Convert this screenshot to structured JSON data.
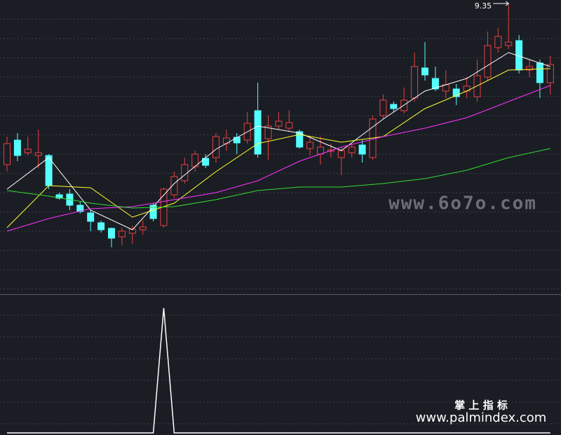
{
  "chart_data": [
    {
      "type": "candlestick",
      "ylim": [
        7.275,
        9.375
      ],
      "up_color": "#e8403f",
      "down_color": "#55ffff",
      "open": [
        8.2,
        8.375,
        8.285,
        8.265,
        8.265,
        7.985,
        7.99,
        7.91,
        7.855,
        7.785,
        7.745,
        7.685,
        7.71,
        7.735,
        7.91,
        7.765,
        7.985,
        8.085,
        8.185,
        8.245,
        8.25,
        8.35,
        8.395,
        8.375,
        8.585,
        8.385,
        8.475,
        8.46,
        8.435,
        8.315,
        8.275,
        8.295,
        8.25,
        8.285,
        8.34,
        8.25,
        8.55,
        8.63,
        8.585,
        8.675,
        8.89,
        8.815,
        8.725,
        8.74,
        8.725,
        8.685,
        8.825,
        9.035,
        9.05,
        9.085,
        8.875,
        8.925,
        8.785
      ],
      "high": [
        8.4,
        8.425,
        8.4,
        8.45,
        8.275,
        8,
        8.025,
        7.935,
        7.875,
        7.8,
        7.75,
        7.75,
        7.765,
        7.8,
        7.925,
        8.035,
        8.15,
        8.25,
        8.3,
        8.275,
        8.425,
        8.45,
        8.425,
        8.575,
        8.785,
        8.55,
        8.575,
        8.59,
        8.45,
        8.4,
        8.4,
        8.35,
        8.325,
        8.35,
        8.375,
        8.55,
        8.7,
        8.65,
        8.75,
        9,
        9.075,
        8.9,
        8.875,
        8.775,
        8.825,
        8.95,
        9.15,
        9.175,
        9.35,
        9.125,
        8.95,
        8.95,
        8.975
      ],
      "low": [
        8.15,
        8.225,
        8.265,
        8.175,
        8.025,
        7.95,
        7.875,
        7.85,
        7.725,
        7.715,
        7.61,
        7.625,
        7.635,
        7.7,
        7.795,
        7.75,
        7.96,
        8.065,
        8.15,
        8.175,
        8.215,
        8.3,
        8.275,
        8.35,
        8.25,
        8.235,
        8.45,
        8.44,
        8.315,
        8.265,
        8.2,
        8.25,
        8.125,
        8.25,
        8.215,
        8.235,
        8.525,
        8.575,
        8.565,
        8.65,
        8.8,
        8.725,
        8.675,
        8.625,
        8.675,
        8.65,
        8.8,
        9,
        9.025,
        8.85,
        8.825,
        8.675,
        8.7
      ],
      "close": [
        8.35,
        8.265,
        8.31,
        8.285,
        8.05,
        7.96,
        7.91,
        7.865,
        7.795,
        7.735,
        7.675,
        7.725,
        7.74,
        7.755,
        7.815,
        8.025,
        8.115,
        8.2,
        8.275,
        8.195,
        8.4,
        8.39,
        8.355,
        8.495,
        8.275,
        8.475,
        8.51,
        8.5,
        8.325,
        8.36,
        8.325,
        8.305,
        8.3,
        8.325,
        8.275,
        8.525,
        8.66,
        8.6,
        8.66,
        8.9,
        8.84,
        8.74,
        8.77,
        8.685,
        8.76,
        8.835,
        9.05,
        9.115,
        9.075,
        8.875,
        8.9,
        8.785,
        8.915
      ],
      "ma_x": [
        0,
        4,
        8,
        12,
        16,
        20,
        24,
        28,
        32,
        36,
        40,
        44,
        48,
        52
      ],
      "series": [
        {
          "color": "#ffffff",
          "values": [
            8.025,
            8.25,
            7.875,
            7.735,
            8.065,
            8.31,
            8.475,
            8.425,
            8.3,
            8.525,
            8.725,
            8.815,
            9.0,
            8.9
          ]
        },
        {
          "color": "#ffff33",
          "values": [
            7.75,
            8.05,
            8.035,
            7.825,
            7.925,
            8.15,
            8.35,
            8.415,
            8.36,
            8.4,
            8.6,
            8.725,
            8.875,
            8.885
          ]
        },
        {
          "color": "#ff33ff",
          "values": [
            7.725,
            7.815,
            7.885,
            7.9,
            7.95,
            8.0,
            8.085,
            8.225,
            8.325,
            8.4,
            8.46,
            8.535,
            8.65,
            8.765
          ]
        },
        {
          "color": "#33dd33",
          "values": [
            8.015,
            7.975,
            7.925,
            7.89,
            7.9,
            7.95,
            8.015,
            8.04,
            8.04,
            8.065,
            8.1,
            8.16,
            8.25,
            8.315
          ]
        }
      ],
      "label_index": 48
    },
    {
      "type": "line",
      "ylim": [
        0,
        1.1
      ],
      "color": "#ffffff",
      "values": [
        0,
        0,
        0,
        0,
        0,
        0,
        0,
        0,
        0,
        0,
        0,
        0,
        0,
        0,
        0,
        1,
        0,
        0,
        0,
        0,
        0,
        0,
        0,
        0,
        0,
        0,
        0,
        0,
        0,
        0,
        0,
        0,
        0,
        0,
        0,
        0,
        0,
        0,
        0,
        0,
        0,
        0,
        0,
        0,
        0,
        0,
        0,
        0,
        0,
        0,
        0,
        0,
        0
      ]
    }
  ],
  "watermarks": [
    "www.6o7o.com",
    "掌 上 指 标",
    "www.palmindex.com"
  ]
}
